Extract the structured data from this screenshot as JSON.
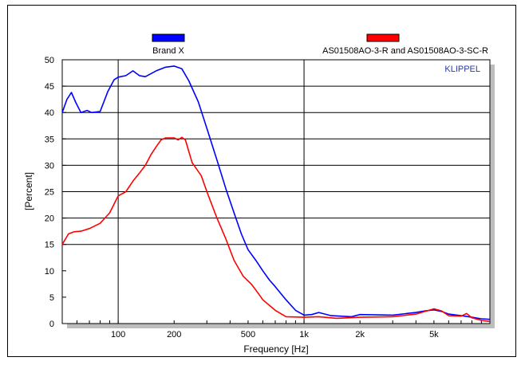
{
  "chart_data": {
    "type": "line",
    "title": "",
    "watermark": "KLIPPEL",
    "xlabel": "Frequency [Hz]",
    "ylabel": "[Percent]",
    "xscale": "log",
    "xlim": [
      50,
      10000
    ],
    "ylim": [
      0,
      50
    ],
    "xticks": [
      {
        "value": 100,
        "label": "100"
      },
      {
        "value": 200,
        "label": "200"
      },
      {
        "value": 500,
        "label": "500"
      },
      {
        "value": 1000,
        "label": "1k"
      },
      {
        "value": 2000,
        "label": "2k"
      },
      {
        "value": 5000,
        "label": "5k"
      }
    ],
    "yticks": [
      0,
      5,
      10,
      15,
      20,
      25,
      30,
      35,
      40,
      45,
      50
    ],
    "grid": {
      "horizontal": [
        15,
        20,
        25,
        30,
        35,
        40,
        45
      ],
      "vertical": [
        100,
        1000
      ]
    },
    "legend": "top",
    "series": [
      {
        "name": "Brand X",
        "color": "#0000ff",
        "points": [
          [
            50,
            40
          ],
          [
            53,
            42.5
          ],
          [
            56,
            43.8
          ],
          [
            59,
            42
          ],
          [
            63,
            40
          ],
          [
            68,
            40.4
          ],
          [
            72,
            40
          ],
          [
            80,
            40.2
          ],
          [
            88,
            44
          ],
          [
            95,
            46.2
          ],
          [
            100,
            46.7
          ],
          [
            110,
            47
          ],
          [
            120,
            47.9
          ],
          [
            130,
            47
          ],
          [
            140,
            46.8
          ],
          [
            160,
            47.9
          ],
          [
            180,
            48.6
          ],
          [
            200,
            48.8
          ],
          [
            220,
            48.3
          ],
          [
            240,
            46
          ],
          [
            270,
            42
          ],
          [
            300,
            37
          ],
          [
            340,
            31
          ],
          [
            380,
            25.5
          ],
          [
            420,
            21
          ],
          [
            460,
            17
          ],
          [
            500,
            14
          ],
          [
            550,
            12
          ],
          [
            600,
            10
          ],
          [
            650,
            8.3
          ],
          [
            700,
            7
          ],
          [
            800,
            4.5
          ],
          [
            900,
            2.5
          ],
          [
            1000,
            1.6
          ],
          [
            1100,
            1.7
          ],
          [
            1200,
            2.1
          ],
          [
            1400,
            1.5
          ],
          [
            1800,
            1.3
          ],
          [
            2000,
            1.7
          ],
          [
            3000,
            1.6
          ],
          [
            4000,
            2.1
          ],
          [
            4500,
            2.4
          ],
          [
            5000,
            2.6
          ],
          [
            5500,
            2.3
          ],
          [
            6000,
            1.8
          ],
          [
            7000,
            1.5
          ],
          [
            8000,
            1.2
          ],
          [
            9000,
            0.9
          ],
          [
            10000,
            0.8
          ]
        ]
      },
      {
        "name": "AS01508AO-3-R and AS01508AO-3-SC-R",
        "color": "#ff0000",
        "points": [
          [
            50,
            15
          ],
          [
            54,
            17
          ],
          [
            58,
            17.4
          ],
          [
            63,
            17.5
          ],
          [
            70,
            18
          ],
          [
            80,
            19
          ],
          [
            90,
            21
          ],
          [
            100,
            24.2
          ],
          [
            110,
            25
          ],
          [
            120,
            27
          ],
          [
            130,
            28.5
          ],
          [
            140,
            30
          ],
          [
            150,
            32
          ],
          [
            160,
            33.5
          ],
          [
            170,
            34.8
          ],
          [
            180,
            35.2
          ],
          [
            200,
            35.2
          ],
          [
            210,
            34.8
          ],
          [
            220,
            35.3
          ],
          [
            230,
            34.8
          ],
          [
            250,
            30.5
          ],
          [
            280,
            28
          ],
          [
            300,
            25
          ],
          [
            340,
            20
          ],
          [
            380,
            16
          ],
          [
            420,
            12
          ],
          [
            470,
            9
          ],
          [
            520,
            7.5
          ],
          [
            560,
            6
          ],
          [
            600,
            4.5
          ],
          [
            700,
            2.5
          ],
          [
            800,
            1.3
          ],
          [
            1000,
            1.2
          ],
          [
            1200,
            1.3
          ],
          [
            1500,
            1
          ],
          [
            2000,
            1.2
          ],
          [
            3000,
            1.3
          ],
          [
            4000,
            1.8
          ],
          [
            5000,
            2.8
          ],
          [
            5500,
            2.4
          ],
          [
            6000,
            1.5
          ],
          [
            7000,
            1.4
          ],
          [
            7500,
            1.9
          ],
          [
            8000,
            1.1
          ],
          [
            9000,
            0.6
          ],
          [
            10000,
            0.4
          ]
        ]
      }
    ]
  }
}
